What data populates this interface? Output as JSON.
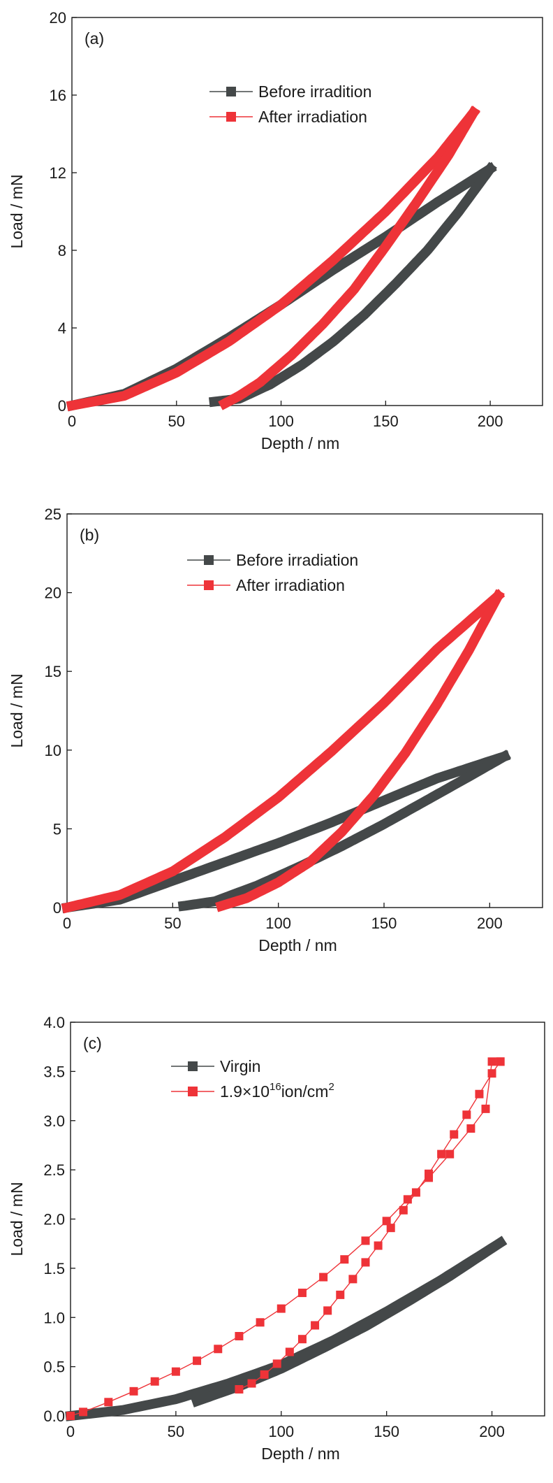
{
  "chart_data": [
    {
      "type": "line",
      "panel_label": "(a)",
      "xlabel": "Depth / nm",
      "ylabel": "Load / mN",
      "xlim": [
        0,
        225
      ],
      "ylim": [
        0,
        20
      ],
      "xticks": [
        "0",
        "50",
        "100",
        "150",
        "200"
      ],
      "yticks": [
        "0",
        "4",
        "8",
        "12",
        "16",
        "20"
      ],
      "legend_position": "top-center",
      "marker_style": "dense",
      "series": [
        {
          "name": "Before irradition",
          "color": "#444849",
          "loading": {
            "x": [
              0,
              25,
              50,
              75,
              100,
              125,
              150,
              175,
              200
            ],
            "y": [
              0,
              0.6,
              1.9,
              3.5,
              5.2,
              7.0,
              8.7,
              10.5,
              12.2
            ]
          },
          "unloading": {
            "x": [
              200,
              185,
              170,
              155,
              140,
              125,
              110,
              95,
              80,
              68
            ],
            "y": [
              12.2,
              10.0,
              8.0,
              6.3,
              4.7,
              3.3,
              2.1,
              1.1,
              0.35,
              0.2
            ]
          }
        },
        {
          "name": "After irradiation",
          "color": "#ee3338",
          "loading": {
            "x": [
              0,
              25,
              50,
              75,
              100,
              125,
              150,
              175,
              192
            ],
            "y": [
              0,
              0.5,
              1.7,
              3.3,
              5.2,
              7.5,
              10.0,
              12.8,
              15.1
            ]
          },
          "unloading": {
            "x": [
              192,
              180,
              165,
              150,
              135,
              120,
              105,
              90,
              80,
              73
            ],
            "y": [
              15.1,
              12.9,
              10.5,
              8.2,
              6.0,
              4.2,
              2.6,
              1.2,
              0.5,
              0.1
            ]
          }
        }
      ]
    },
    {
      "type": "line",
      "panel_label": "(b)",
      "xlabel": "Depth / nm",
      "ylabel": "Load / mN",
      "xlim": [
        0,
        225
      ],
      "ylim": [
        0,
        25
      ],
      "xticks": [
        "0",
        "50",
        "100",
        "150",
        "200"
      ],
      "yticks": [
        "0",
        "5",
        "10",
        "15",
        "20",
        "25"
      ],
      "legend_position": "top-center",
      "marker_style": "dense",
      "series": [
        {
          "name": "Before irradiation",
          "color": "#444849",
          "loading": {
            "x": [
              0,
              25,
              50,
              75,
              100,
              125,
              150,
              175,
              200,
              207
            ],
            "y": [
              0,
              0.5,
              1.7,
              2.9,
              4.1,
              5.4,
              6.8,
              8.2,
              9.3,
              9.6
            ]
          },
          "unloading": {
            "x": [
              207,
              190,
              170,
              150,
              130,
              110,
              90,
              70,
              55
            ],
            "y": [
              9.6,
              8.3,
              6.8,
              5.3,
              3.9,
              2.6,
              1.4,
              0.4,
              0.1
            ]
          }
        },
        {
          "name": "After irradiation",
          "color": "#ee3338",
          "loading": {
            "x": [
              0,
              25,
              50,
              75,
              100,
              125,
              150,
              175,
              204
            ],
            "y": [
              0,
              0.8,
              2.3,
              4.5,
              7.0,
              9.9,
              13.0,
              16.4,
              19.8
            ]
          },
          "unloading": {
            "x": [
              204,
              190,
              175,
              160,
              145,
              130,
              115,
              100,
              85,
              73
            ],
            "y": [
              19.8,
              16.3,
              12.9,
              9.8,
              7.1,
              4.8,
              2.9,
              1.6,
              0.6,
              0.1
            ]
          }
        }
      ]
    },
    {
      "type": "line",
      "panel_label": "(c)",
      "xlabel": "Depth / nm",
      "ylabel": "Load / mN",
      "xlim": [
        0,
        225
      ],
      "ylim": [
        0,
        4.0
      ],
      "xticks": [
        "0",
        "50",
        "100",
        "150",
        "200"
      ],
      "yticks": [
        "0.0",
        "0.5",
        "1.0",
        "1.5",
        "2.0",
        "2.5",
        "3.0",
        "3.5",
        "4.0"
      ],
      "legend_position": "top-center",
      "series": [
        {
          "name": "Virgin",
          "color": "#444849",
          "marker_style": "dense",
          "loading": {
            "x": [
              0,
              25,
              50,
              75,
              100,
              125,
              150,
              175,
              204
            ],
            "y": [
              0,
              0.06,
              0.17,
              0.33,
              0.52,
              0.77,
              1.06,
              1.37,
              1.76
            ]
          },
          "unloading": {
            "x": [
              204,
              180,
              160,
              140,
              120,
              100,
              80,
              60
            ],
            "y": [
              1.76,
              1.42,
              1.16,
              0.91,
              0.69,
              0.48,
              0.3,
              0.15
            ]
          }
        },
        {
          "name_parts": {
            "base": "1.9×10",
            "sup": "16",
            "mid": "ion/cm",
            "sup2": "2"
          },
          "color": "#ee3338",
          "marker_style": "sparse",
          "loading": {
            "x": [
              0,
              6,
              18,
              30,
              40,
              50,
              60,
              70,
              80,
              90,
              100,
              110,
              120,
              130,
              140,
              150,
              160,
              170,
              180,
              190,
              197,
              200,
              204
            ],
            "y": [
              0,
              0.04,
              0.14,
              0.25,
              0.35,
              0.45,
              0.56,
              0.68,
              0.81,
              0.95,
              1.09,
              1.25,
              1.41,
              1.59,
              1.78,
              1.98,
              2.2,
              2.42,
              2.66,
              2.92,
              3.12,
              3.6,
              3.6
            ]
          },
          "unloading": {
            "x": [
              204,
              200,
              194,
              188,
              182,
              176,
              170,
              164,
              158,
              152,
              146,
              140,
              134,
              128,
              122,
              116,
              110,
              104,
              98,
              92,
              86,
              80
            ],
            "y": [
              3.6,
              3.48,
              3.27,
              3.06,
              2.86,
              2.66,
              2.46,
              2.27,
              2.09,
              1.91,
              1.73,
              1.56,
              1.39,
              1.23,
              1.07,
              0.92,
              0.78,
              0.65,
              0.53,
              0.42,
              0.33,
              0.27
            ]
          }
        }
      ]
    }
  ]
}
